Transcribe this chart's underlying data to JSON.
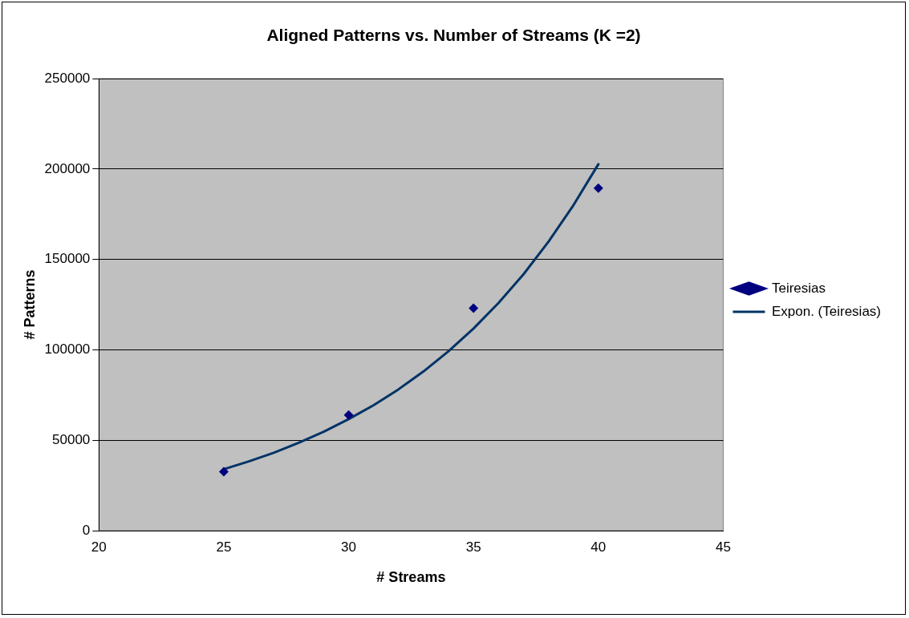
{
  "chart_data": {
    "type": "scatter",
    "title": "Aligned Patterns vs. Number of Streams (K =2)",
    "xlabel": "# Streams",
    "ylabel": "# Patterns",
    "xlim": [
      20,
      45
    ],
    "xticks": [
      20,
      25,
      30,
      35,
      40,
      45
    ],
    "ylim": [
      0,
      250000
    ],
    "yticks": [
      0,
      50000,
      100000,
      150000,
      200000,
      250000
    ],
    "grid": "y",
    "legend": "right",
    "marker": "diamond",
    "series": [
      {
        "name": "Teiresias",
        "color": "#000080",
        "x": [
          25,
          30,
          35,
          40
        ],
        "values": [
          32600,
          64000,
          123100,
          189500
        ]
      },
      {
        "name": "Expon. (Teiresias)",
        "type": "line",
        "color": "#003366",
        "marker": "none",
        "line_style": "solid",
        "x": [
          25,
          26,
          27,
          28,
          29,
          30,
          31,
          32,
          33,
          34,
          35,
          36,
          37,
          38,
          39,
          40
        ],
        "values": [
          34000,
          38300,
          43100,
          48600,
          54700,
          61700,
          69400,
          78200,
          88100,
          99300,
          111800,
          125900,
          141800,
          159800,
          180000,
          202700
        ]
      }
    ]
  }
}
